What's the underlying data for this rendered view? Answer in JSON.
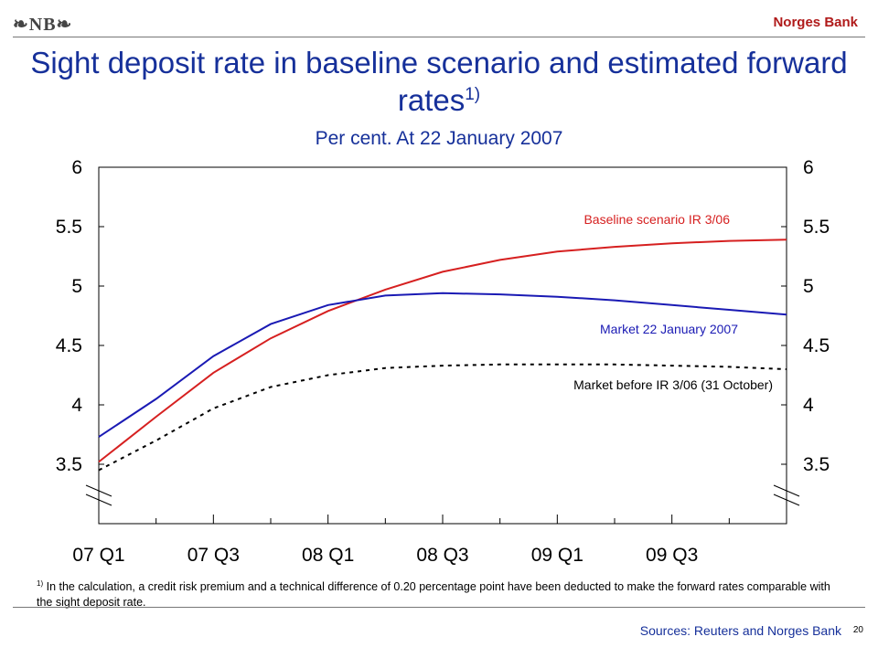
{
  "header": {
    "logo_text": "❧NB❧",
    "bank_name": "Norges Bank"
  },
  "title": {
    "main": "Sight deposit rate in baseline scenario and estimated forward rates",
    "superscript": "1)",
    "subtitle": "Per cent. At 22 January 2007"
  },
  "footnote": {
    "marker": "1)",
    "text": " In the calculation, a credit risk premium and a technical difference of 0.20 percentage point have been deducted to make the forward rates comparable with the sight deposit rate."
  },
  "sources": "Sources: Reuters and Norges Bank",
  "page_number": "20",
  "chart_data": {
    "type": "line",
    "title": "Sight deposit rate in baseline scenario and estimated forward rates",
    "subtitle": "Per cent. At 22 January 2007",
    "x_labels": [
      "07 Q1",
      "07 Q3",
      "08 Q1",
      "08 Q3",
      "09 Q1",
      "09 Q3"
    ],
    "x": [
      "2007-01-01",
      "2007-04-01",
      "2007-07-01",
      "2007-10-01",
      "2008-01-01",
      "2008-04-01",
      "2008-07-01",
      "2008-10-01",
      "2009-01-01",
      "2009-04-01",
      "2009-07-01",
      "2009-10-01",
      "2010-01-01"
    ],
    "y_ticks": [
      3.5,
      4,
      4.5,
      5,
      5.5,
      6
    ],
    "y_tick_labels": [
      "3.5",
      "4",
      "4.5",
      "5",
      "5.5",
      "6"
    ],
    "ylim": [
      3.0,
      6.0
    ],
    "axis_break": true,
    "grid": false,
    "series": [
      {
        "name": "Baseline scenario IR 3/06",
        "color": "#d62020",
        "style": "solid",
        "values": [
          3.52,
          3.9,
          4.27,
          4.56,
          4.79,
          4.97,
          5.12,
          5.22,
          5.29,
          5.33,
          5.36,
          5.38,
          5.39
        ]
      },
      {
        "name": "Market 22 January 2007",
        "color": "#1a1ab4",
        "style": "solid",
        "values": [
          3.73,
          4.05,
          4.41,
          4.68,
          4.84,
          4.92,
          4.94,
          4.93,
          4.91,
          4.88,
          4.84,
          4.8,
          4.76
        ]
      },
      {
        "name": "Market before IR 3/06 (31 October)",
        "color": "#000000",
        "style": "dashed",
        "values": [
          3.45,
          3.7,
          3.97,
          4.15,
          4.25,
          4.31,
          4.33,
          4.34,
          4.34,
          4.34,
          4.33,
          4.32,
          4.3
        ]
      }
    ]
  }
}
